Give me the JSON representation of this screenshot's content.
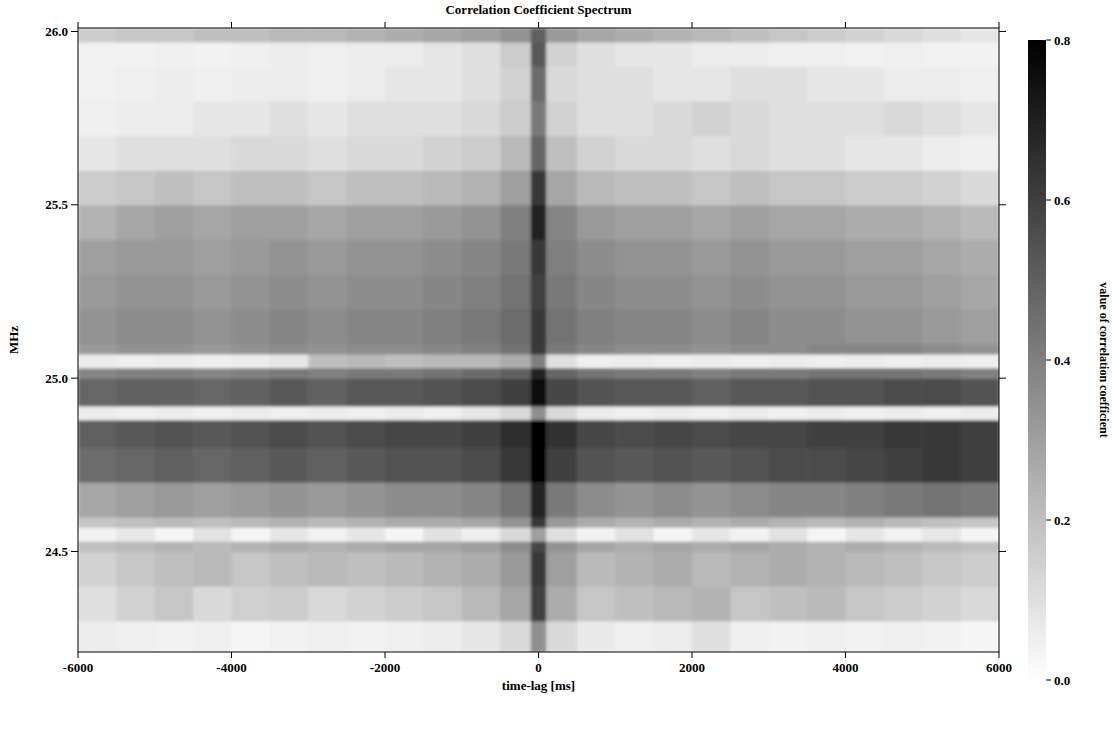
{
  "chart_data": {
    "type": "heatmap",
    "title": "Correlation Coefficient Spectrum",
    "x_label": "time-lag [ms]",
    "y_label": "MHz",
    "color": "#000000",
    "xlim": [
      -6000,
      6000
    ],
    "ylim": [
      24.21,
      26.01
    ],
    "xticks": [
      -6000,
      -4000,
      -2000,
      0,
      2000,
      4000,
      6000
    ],
    "yticks": [
      {
        "value": 24.5,
        "label": "24.5"
      },
      {
        "value": 25,
        "label": "25.0"
      },
      {
        "value": 25.5,
        "label": "25.5"
      },
      {
        "value": 26,
        "label": "26.0"
      }
    ],
    "x_edges": [
      -6000,
      -5500,
      -5000,
      -4500,
      -4000,
      -3500,
      -3000,
      -2500,
      -2000,
      -1500,
      -1000,
      -500,
      -100,
      100,
      500,
      1000,
      1500,
      2000,
      2500,
      3000,
      3500,
      4000,
      4500,
      5000,
      5500,
      6000
    ],
    "y_edges": [
      24.21,
      24.3,
      24.4,
      24.5,
      24.53,
      24.57,
      24.6,
      24.7,
      24.8,
      24.88,
      24.92,
      25.0,
      25.03,
      25.07,
      25.1,
      25.2,
      25.3,
      25.4,
      25.5,
      25.6,
      25.7,
      25.8,
      25.9,
      25.97,
      26.01
    ],
    "cells": [
      [
        0.06,
        0.05,
        0.04,
        0.05,
        0.03,
        0.04,
        0.05,
        0.04,
        0.05,
        0.06,
        0.08,
        0.12,
        0.35,
        0.12,
        0.07,
        0.05,
        0.06,
        0.1,
        0.05,
        0.04,
        0.05,
        0.04,
        0.05,
        0.04,
        0.03
      ],
      [
        0.1,
        0.14,
        0.18,
        0.12,
        0.15,
        0.16,
        0.12,
        0.14,
        0.16,
        0.18,
        0.22,
        0.28,
        0.6,
        0.26,
        0.18,
        0.2,
        0.22,
        0.24,
        0.18,
        0.2,
        0.22,
        0.18,
        0.16,
        0.14,
        0.12
      ],
      [
        0.14,
        0.18,
        0.2,
        0.22,
        0.18,
        0.2,
        0.22,
        0.2,
        0.22,
        0.24,
        0.26,
        0.32,
        0.62,
        0.3,
        0.22,
        0.24,
        0.26,
        0.22,
        0.24,
        0.26,
        0.24,
        0.22,
        0.2,
        0.18,
        0.16
      ],
      [
        0.2,
        0.22,
        0.24,
        0.22,
        0.24,
        0.26,
        0.24,
        0.26,
        0.28,
        0.28,
        0.3,
        0.36,
        0.58,
        0.34,
        0.28,
        0.26,
        0.28,
        0.26,
        0.28,
        0.26,
        0.24,
        0.26,
        0.24,
        0.22,
        0.2
      ],
      [
        0.04,
        0.08,
        0.03,
        0.09,
        0.03,
        0.08,
        0.04,
        0.08,
        0.03,
        0.09,
        0.05,
        0.12,
        0.3,
        0.1,
        0.04,
        0.09,
        0.03,
        0.08,
        0.04,
        0.09,
        0.03,
        0.08,
        0.04,
        0.08,
        0.03
      ],
      [
        0.18,
        0.2,
        0.22,
        0.2,
        0.22,
        0.24,
        0.22,
        0.24,
        0.26,
        0.26,
        0.28,
        0.34,
        0.62,
        0.32,
        0.26,
        0.24,
        0.26,
        0.24,
        0.26,
        0.24,
        0.22,
        0.24,
        0.22,
        0.2,
        0.18
      ],
      [
        0.28,
        0.3,
        0.32,
        0.3,
        0.32,
        0.34,
        0.32,
        0.34,
        0.36,
        0.36,
        0.38,
        0.44,
        0.7,
        0.42,
        0.36,
        0.34,
        0.36,
        0.34,
        0.36,
        0.38,
        0.38,
        0.4,
        0.42,
        0.44,
        0.42
      ],
      [
        0.46,
        0.48,
        0.5,
        0.48,
        0.5,
        0.52,
        0.5,
        0.52,
        0.54,
        0.54,
        0.56,
        0.62,
        0.8,
        0.6,
        0.54,
        0.52,
        0.54,
        0.52,
        0.54,
        0.56,
        0.56,
        0.58,
        0.6,
        0.62,
        0.6
      ],
      [
        0.5,
        0.52,
        0.54,
        0.52,
        0.54,
        0.56,
        0.54,
        0.56,
        0.58,
        0.58,
        0.6,
        0.66,
        0.8,
        0.64,
        0.58,
        0.56,
        0.58,
        0.56,
        0.58,
        0.58,
        0.6,
        0.6,
        0.62,
        0.62,
        0.6
      ],
      [
        0.06,
        0.05,
        0.06,
        0.05,
        0.06,
        0.05,
        0.06,
        0.05,
        0.06,
        0.05,
        0.08,
        0.12,
        0.35,
        0.12,
        0.06,
        0.05,
        0.06,
        0.05,
        0.06,
        0.05,
        0.06,
        0.05,
        0.06,
        0.05,
        0.06
      ],
      [
        0.48,
        0.5,
        0.5,
        0.48,
        0.5,
        0.52,
        0.5,
        0.52,
        0.52,
        0.54,
        0.56,
        0.6,
        0.76,
        0.58,
        0.54,
        0.52,
        0.52,
        0.5,
        0.52,
        0.52,
        0.54,
        0.54,
        0.56,
        0.56,
        0.54
      ],
      [
        0.38,
        0.4,
        0.4,
        0.38,
        0.4,
        0.42,
        0.4,
        0.42,
        0.42,
        0.44,
        0.46,
        0.5,
        0.7,
        0.48,
        0.44,
        0.42,
        0.42,
        0.4,
        0.42,
        0.42,
        0.44,
        0.44,
        0.44,
        0.42,
        0.4
      ],
      [
        0.06,
        0.05,
        0.06,
        0.05,
        0.06,
        0.08,
        0.2,
        0.22,
        0.2,
        0.22,
        0.22,
        0.26,
        0.4,
        0.1,
        0.05,
        0.06,
        0.05,
        0.06,
        0.05,
        0.06,
        0.05,
        0.06,
        0.05,
        0.06,
        0.05
      ],
      [
        0.32,
        0.34,
        0.34,
        0.32,
        0.34,
        0.36,
        0.34,
        0.36,
        0.36,
        0.38,
        0.4,
        0.44,
        0.62,
        0.42,
        0.38,
        0.36,
        0.36,
        0.34,
        0.36,
        0.36,
        0.38,
        0.38,
        0.38,
        0.36,
        0.34
      ],
      [
        0.34,
        0.36,
        0.36,
        0.34,
        0.36,
        0.38,
        0.36,
        0.38,
        0.38,
        0.4,
        0.42,
        0.46,
        0.62,
        0.44,
        0.4,
        0.38,
        0.38,
        0.36,
        0.38,
        0.36,
        0.36,
        0.34,
        0.34,
        0.32,
        0.3
      ],
      [
        0.32,
        0.34,
        0.34,
        0.32,
        0.34,
        0.36,
        0.34,
        0.36,
        0.36,
        0.38,
        0.4,
        0.44,
        0.6,
        0.42,
        0.38,
        0.36,
        0.36,
        0.34,
        0.36,
        0.34,
        0.34,
        0.32,
        0.32,
        0.3,
        0.28
      ],
      [
        0.3,
        0.32,
        0.32,
        0.3,
        0.32,
        0.34,
        0.32,
        0.34,
        0.34,
        0.36,
        0.38,
        0.42,
        0.62,
        0.4,
        0.36,
        0.34,
        0.34,
        0.32,
        0.34,
        0.32,
        0.32,
        0.3,
        0.3,
        0.28,
        0.26
      ],
      [
        0.24,
        0.28,
        0.3,
        0.28,
        0.3,
        0.3,
        0.28,
        0.3,
        0.3,
        0.32,
        0.34,
        0.4,
        0.7,
        0.38,
        0.32,
        0.3,
        0.3,
        0.28,
        0.3,
        0.28,
        0.28,
        0.26,
        0.26,
        0.24,
        0.22
      ],
      [
        0.16,
        0.18,
        0.2,
        0.18,
        0.2,
        0.2,
        0.18,
        0.2,
        0.2,
        0.22,
        0.24,
        0.3,
        0.62,
        0.28,
        0.22,
        0.2,
        0.2,
        0.18,
        0.2,
        0.18,
        0.18,
        0.16,
        0.16,
        0.14,
        0.12
      ],
      [
        0.08,
        0.1,
        0.1,
        0.1,
        0.12,
        0.12,
        0.1,
        0.12,
        0.12,
        0.14,
        0.16,
        0.22,
        0.48,
        0.2,
        0.14,
        0.12,
        0.12,
        0.1,
        0.12,
        0.1,
        0.1,
        0.08,
        0.08,
        0.06,
        0.05
      ],
      [
        0.05,
        0.06,
        0.06,
        0.08,
        0.08,
        0.1,
        0.08,
        0.1,
        0.1,
        0.1,
        0.12,
        0.16,
        0.42,
        0.14,
        0.1,
        0.1,
        0.12,
        0.14,
        0.12,
        0.1,
        0.1,
        0.1,
        0.12,
        0.1,
        0.08
      ],
      [
        0.04,
        0.05,
        0.06,
        0.05,
        0.06,
        0.06,
        0.05,
        0.06,
        0.08,
        0.08,
        0.1,
        0.14,
        0.46,
        0.12,
        0.1,
        0.1,
        0.08,
        0.08,
        0.1,
        0.1,
        0.08,
        0.08,
        0.06,
        0.06,
        0.05
      ],
      [
        0.04,
        0.04,
        0.05,
        0.04,
        0.05,
        0.06,
        0.05,
        0.06,
        0.06,
        0.08,
        0.1,
        0.16,
        0.52,
        0.14,
        0.1,
        0.08,
        0.08,
        0.06,
        0.06,
        0.05,
        0.05,
        0.04,
        0.05,
        0.04,
        0.04
      ],
      [
        0.16,
        0.18,
        0.18,
        0.2,
        0.2,
        0.22,
        0.22,
        0.24,
        0.26,
        0.28,
        0.3,
        0.34,
        0.5,
        0.32,
        0.28,
        0.26,
        0.24,
        0.22,
        0.2,
        0.18,
        0.16,
        0.14,
        0.12,
        0.1,
        0.08
      ]
    ],
    "clabel": "value of correlation coefficient",
    "clim": [
      0,
      0.8
    ],
    "cticks": [
      {
        "value": 0,
        "label": "0.0"
      },
      {
        "value": 0.2,
        "label": "0.2"
      },
      {
        "value": 0.4,
        "label": "0.4"
      },
      {
        "value": 0.6,
        "label": "0.6"
      },
      {
        "value": 0.8,
        "label": "0.8"
      }
    ]
  }
}
